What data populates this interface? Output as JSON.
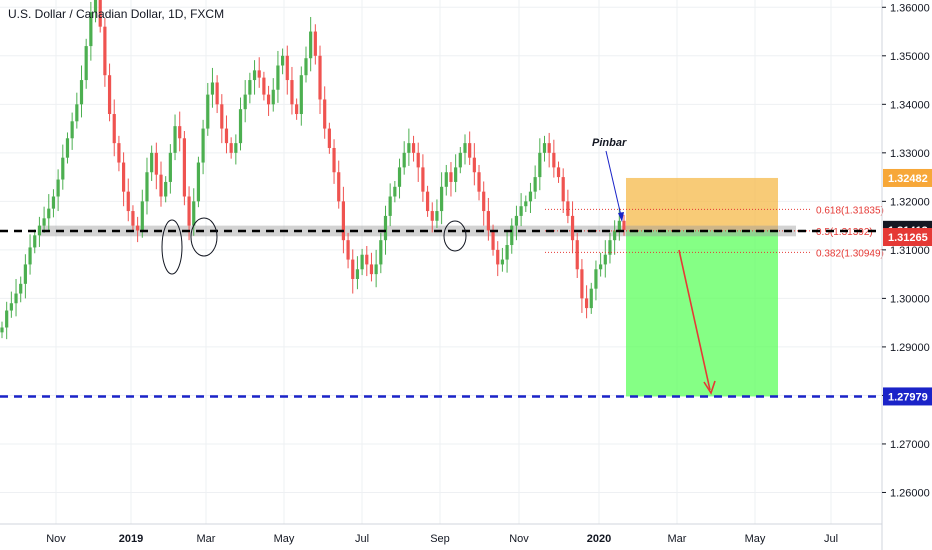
{
  "chart_data": {
    "type": "candlestick",
    "title": "U.S. Dollar / Canadian Dollar, 1D, FXCM",
    "y_axis": {
      "ticks": [
        "1.36000",
        "1.35000",
        "1.34000",
        "1.33000",
        "1.32000",
        "1.31000",
        "1.30000",
        "1.29000",
        "1.28000",
        "1.27000",
        "1.26000"
      ],
      "range": [
        1.2535,
        1.3615
      ],
      "position": "right"
    },
    "x_axis": {
      "ticks": [
        "Nov",
        "2019",
        "Mar",
        "May",
        "Jul",
        "Sep",
        "Nov",
        "2020",
        "Mar",
        "May",
        "Jul"
      ]
    },
    "candles": {
      "up_color": "#4caf50",
      "down_color": "#ef5350",
      "series_close": [
        1.294,
        1.2975,
        1.299,
        1.301,
        1.303,
        1.307,
        1.3105,
        1.313,
        1.315,
        1.3165,
        1.3185,
        1.321,
        1.3245,
        1.329,
        1.333,
        1.3365,
        1.34,
        1.345,
        1.352,
        1.359,
        1.362,
        1.356,
        1.346,
        1.338,
        1.332,
        1.328,
        1.322,
        1.318,
        1.315,
        1.314,
        1.32,
        1.326,
        1.33,
        1.3255,
        1.321,
        1.324,
        1.33,
        1.3355,
        1.333,
        1.321,
        1.315,
        1.32,
        1.328,
        1.335,
        1.342,
        1.3445,
        1.34,
        1.335,
        1.332,
        1.33,
        1.332,
        1.339,
        1.342,
        1.345,
        1.347,
        1.3455,
        1.342,
        1.34,
        1.343,
        1.348,
        1.35,
        1.345,
        1.34,
        1.338,
        1.346,
        1.3495,
        1.355,
        1.35,
        1.341,
        1.335,
        1.331,
        1.326,
        1.32,
        1.312,
        1.308,
        1.304,
        1.306,
        1.309,
        1.307,
        1.305,
        1.307,
        1.312,
        1.317,
        1.321,
        1.323,
        1.327,
        1.33,
        1.332,
        1.33,
        1.327,
        1.322,
        1.318,
        1.316,
        1.318,
        1.323,
        1.326,
        1.324,
        1.327,
        1.33,
        1.332,
        1.329,
        1.326,
        1.322,
        1.318,
        1.314,
        1.31,
        1.307,
        1.308,
        1.311,
        1.315,
        1.317,
        1.319,
        1.32,
        1.322,
        1.325,
        1.33,
        1.332,
        1.33,
        1.327,
        1.325,
        1.32,
        1.317,
        1.312,
        1.306,
        1.3,
        1.298,
        1.302,
        1.306,
        1.307,
        1.309,
        1.312,
        1.314,
        1.316,
        1.3141
      ]
    },
    "annotations": [
      {
        "type": "label",
        "text": "Pinbar"
      },
      {
        "type": "fib_level",
        "text": "0.618(1.31835)",
        "price": 1.31835,
        "color": "#e53935"
      },
      {
        "type": "fib_level",
        "text": "0.5(1.31392)",
        "price": 1.31392,
        "color": "#e53935"
      },
      {
        "type": "fib_level",
        "text": "0.382(1.30949)",
        "price": 1.30949,
        "color": "#e53935"
      },
      {
        "type": "support_zone",
        "from": 1.3128,
        "to": 1.315,
        "color": "#9e9e9e"
      },
      {
        "type": "horizontal_line",
        "price": 1.3139,
        "style": "dashed",
        "color": "#000000"
      },
      {
        "type": "horizontal_line",
        "price": 1.27979,
        "style": "dashed",
        "color": "#1a23c8"
      },
      {
        "type": "stop_zone",
        "from": 1.3141,
        "to": 1.32482,
        "color": "#f5b94a"
      },
      {
        "type": "target_zone",
        "from": 1.27979,
        "to": 1.3141,
        "color": "#5cff5c"
      },
      {
        "type": "arrow",
        "direction": "down",
        "color": "#e53935"
      },
      {
        "type": "ellipses",
        "count": 3
      }
    ],
    "price_labels": [
      {
        "text": "1.32482",
        "price": 1.32482,
        "bg": "#f7a738",
        "fg": "#ffffff"
      },
      {
        "text": "1.31413",
        "price": 1.31413,
        "bg": "#131722",
        "fg": "#ffffff"
      },
      {
        "text": "1.31265",
        "price": 1.31265,
        "bg": "#e53935",
        "fg": "#ffffff"
      },
      {
        "text": "1.27979",
        "price": 1.27979,
        "bg": "#1a23c8",
        "fg": "#ffffff"
      }
    ],
    "grid": true
  }
}
